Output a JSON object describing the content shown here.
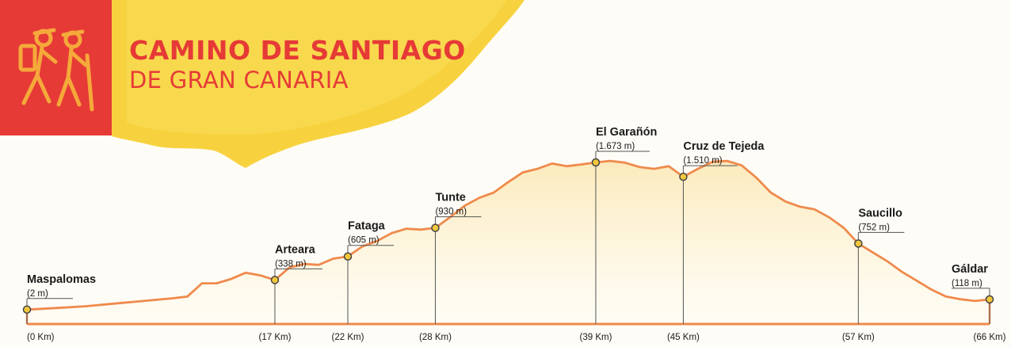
{
  "header": {
    "title": "CAMINO DE SANTIAGO",
    "subtitle": "DE GRAN CANARIA",
    "logo_icon": "hikers-icon"
  },
  "colors": {
    "brand_red": "#e63a36",
    "route_line": "#ef8a4c",
    "area_fill": "#fbe9b8",
    "marker_fill": "#f2c73c",
    "marker_stroke": "#444444",
    "splash_yellow": "#f6cd2a",
    "text": "#1a1a1a"
  },
  "chart_data": {
    "type": "area",
    "title": "",
    "xlabel": "",
    "ylabel": "",
    "xlim": [
      0,
      66
    ],
    "ylim": [
      0,
      1800
    ],
    "grid": false,
    "legend": "none",
    "unit_x": "Km",
    "unit_y": "m",
    "profile": [
      [
        0,
        2
      ],
      [
        2,
        20
      ],
      [
        4,
        40
      ],
      [
        6,
        70
      ],
      [
        8,
        100
      ],
      [
        10,
        130
      ],
      [
        11,
        150
      ],
      [
        12,
        300
      ],
      [
        13,
        300
      ],
      [
        14,
        350
      ],
      [
        15,
        420
      ],
      [
        16,
        390
      ],
      [
        17,
        338
      ],
      [
        18,
        480
      ],
      [
        19,
        520
      ],
      [
        20,
        510
      ],
      [
        21,
        580
      ],
      [
        22,
        605
      ],
      [
        23,
        720
      ],
      [
        24,
        780
      ],
      [
        25,
        870
      ],
      [
        26,
        920
      ],
      [
        27,
        910
      ],
      [
        28,
        930
      ],
      [
        29,
        1050
      ],
      [
        30,
        1180
      ],
      [
        31,
        1270
      ],
      [
        32,
        1330
      ],
      [
        33,
        1450
      ],
      [
        34,
        1560
      ],
      [
        35,
        1600
      ],
      [
        36,
        1660
      ],
      [
        37,
        1630
      ],
      [
        38,
        1650
      ],
      [
        39,
        1673
      ],
      [
        40,
        1690
      ],
      [
        41,
        1670
      ],
      [
        42,
        1620
      ],
      [
        43,
        1600
      ],
      [
        44,
        1630
      ],
      [
        45,
        1510
      ],
      [
        46,
        1600
      ],
      [
        47,
        1680
      ],
      [
        48,
        1690
      ],
      [
        49,
        1640
      ],
      [
        50,
        1500
      ],
      [
        51,
        1330
      ],
      [
        52,
        1230
      ],
      [
        53,
        1170
      ],
      [
        54,
        1140
      ],
      [
        55,
        1050
      ],
      [
        56,
        930
      ],
      [
        57,
        752
      ],
      [
        58,
        650
      ],
      [
        59,
        550
      ],
      [
        60,
        430
      ],
      [
        61,
        330
      ],
      [
        62,
        230
      ],
      [
        63,
        150
      ],
      [
        64,
        120
      ],
      [
        65,
        100
      ],
      [
        66,
        118
      ]
    ],
    "waypoints": [
      {
        "name": "Maspalomas",
        "elevation_label": "(2 m)",
        "km_label": "(0 Km)",
        "km": 0,
        "elevation": 2
      },
      {
        "name": "Arteara",
        "elevation_label": "(338 m)",
        "km_label": "(17 Km)",
        "km": 17,
        "elevation": 338
      },
      {
        "name": "Fataga",
        "elevation_label": "(605 m)",
        "km_label": "(22 Km)",
        "km": 22,
        "elevation": 605
      },
      {
        "name": "Tunte",
        "elevation_label": "(930 m)",
        "km_label": "(28 Km)",
        "km": 28,
        "elevation": 930
      },
      {
        "name": "El Garañón",
        "elevation_label": "(1.673 m)",
        "km_label": "(39 Km)",
        "km": 39,
        "elevation": 1673
      },
      {
        "name": "Cruz de Tejeda",
        "elevation_label": "(1.510 m)",
        "km_label": "(45 Km)",
        "km": 45,
        "elevation": 1510
      },
      {
        "name": "Saucillo",
        "elevation_label": "(752 m)",
        "km_label": "(57 Km)",
        "km": 57,
        "elevation": 752
      },
      {
        "name": "Gáldar",
        "elevation_label": "(118 m)",
        "km_label": "(66 Km)",
        "km": 66,
        "elevation": 118
      }
    ]
  }
}
